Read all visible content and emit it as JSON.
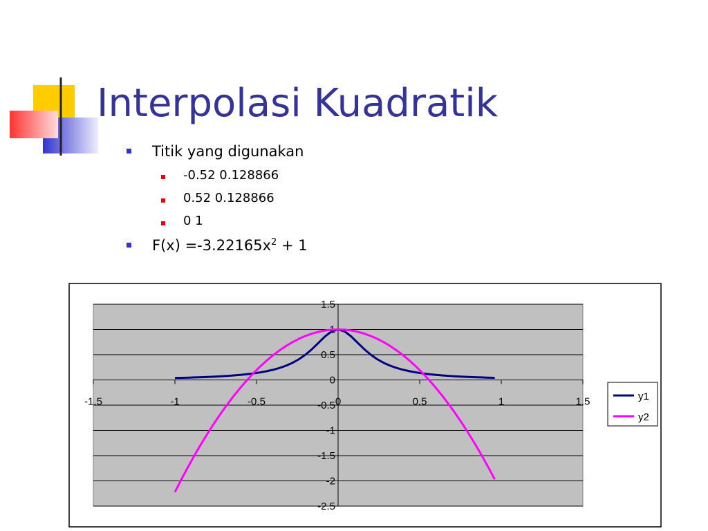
{
  "header": {
    "title": "Interpolasi Kuadratik"
  },
  "bullets": [
    {
      "text": "Titik yang digunakan",
      "sub": [
        "-0.52 0.128866",
        "0.52 0.128866",
        "0 1"
      ]
    },
    {
      "text": "F(x) =-3.22165x",
      "superscript": "2",
      "suffix": " + 1"
    }
  ],
  "chart_data": {
    "type": "line",
    "x": [
      -1,
      -0.96,
      -0.92,
      -0.88,
      -0.84,
      -0.8,
      -0.76,
      -0.72,
      -0.68,
      -0.64,
      -0.6,
      -0.56,
      -0.52,
      -0.48,
      -0.44,
      -0.4,
      -0.36,
      -0.32,
      -0.28,
      -0.24,
      -0.2,
      -0.16,
      -0.12,
      -0.08,
      -0.04,
      0,
      0.04,
      0.08,
      0.12,
      0.16,
      0.2,
      0.24,
      0.28,
      0.32,
      0.36,
      0.4,
      0.44,
      0.48,
      0.52,
      0.56,
      0.6,
      0.64,
      0.68,
      0.72,
      0.76,
      0.8,
      0.84,
      0.88,
      0.92,
      0.96
    ],
    "series": [
      {
        "name": "y1",
        "color": "#000080",
        "values": [
          0.0385,
          0.0416,
          0.0451,
          0.0491,
          0.0536,
          0.0588,
          0.0648,
          0.0716,
          0.0796,
          0.089,
          0.1,
          0.1131,
          0.1289,
          0.1479,
          0.1712,
          0.2,
          0.2358,
          0.2809,
          0.3378,
          0.4098,
          0.5,
          0.6098,
          0.7353,
          0.8621,
          0.9615,
          1,
          0.9615,
          0.8621,
          0.7353,
          0.6098,
          0.5,
          0.4098,
          0.3378,
          0.2809,
          0.2358,
          0.2,
          0.1712,
          0.1479,
          0.1289,
          0.1131,
          0.1,
          0.089,
          0.0796,
          0.0716,
          0.0648,
          0.0588,
          0.0536,
          0.0491,
          0.0451,
          0.0416
        ]
      },
      {
        "name": "y2",
        "color": "#ff00ff",
        "values": [
          -2.2217,
          -1.9691,
          -1.7268,
          -1.4948,
          -1.2732,
          -1.0619,
          -0.8608,
          -0.6701,
          -0.4897,
          -0.3196,
          -0.1598,
          -0.0103,
          0.1289,
          0.2577,
          0.3763,
          0.4845,
          0.5825,
          0.6701,
          0.7474,
          0.8144,
          0.8711,
          0.9175,
          0.9536,
          0.9794,
          0.9948,
          1,
          0.9948,
          0.9794,
          0.9536,
          0.9175,
          0.8711,
          0.8144,
          0.7474,
          0.6701,
          0.5825,
          0.4845,
          0.3763,
          0.2577,
          0.1289,
          -0.0103,
          -0.1598,
          -0.3196,
          -0.4897,
          -0.6701,
          -0.8608,
          -1.0619,
          -1.2732,
          -1.4948,
          -1.7268,
          -1.9691
        ]
      }
    ],
    "xlim": [
      -1.5,
      1.5
    ],
    "xticks": [
      -1.5,
      -1,
      -0.5,
      0,
      0.5,
      1,
      1.5
    ],
    "ylim": [
      -2.5,
      1.5
    ],
    "yticks": [
      1.5,
      1,
      0.5,
      0,
      -0.5,
      -1,
      -1.5,
      -2,
      -2.5
    ],
    "grid": true,
    "legend": "right"
  }
}
